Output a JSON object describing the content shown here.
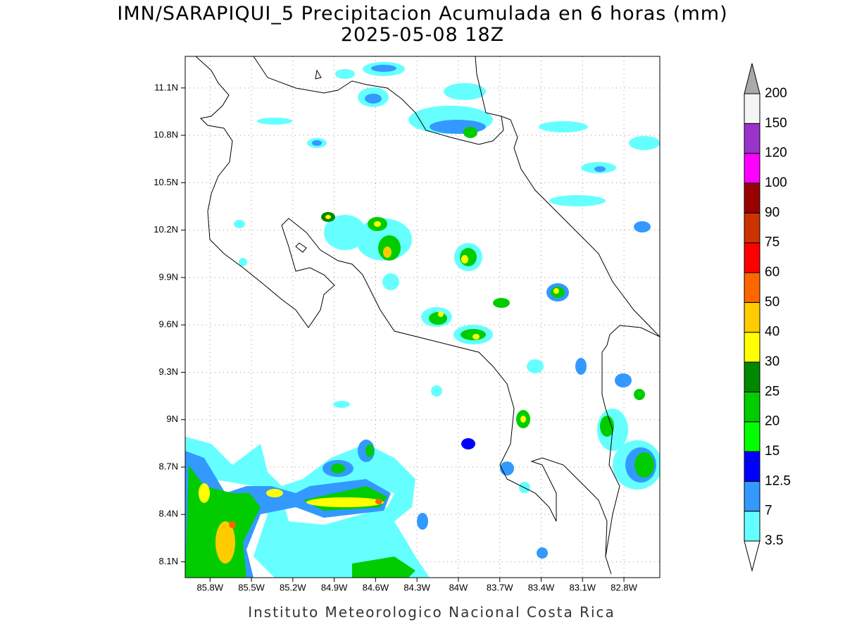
{
  "map": {
    "title": "IMN/SARAPIQUI_5 Precipitacion Acumulada en 6 horas (mm)",
    "subtitle": "2025-05-08 18Z",
    "xlim": [
      -85.98,
      -82.54
    ],
    "ylim": [
      8.0,
      11.3
    ],
    "xticks": [
      {
        "value": -85.8,
        "label": "85.8W"
      },
      {
        "value": -85.5,
        "label": "85.5W"
      },
      {
        "value": -85.2,
        "label": "85.2W"
      },
      {
        "value": -84.9,
        "label": "84.9W"
      },
      {
        "value": -84.6,
        "label": "84.6W"
      },
      {
        "value": -84.3,
        "label": "84.3W"
      },
      {
        "value": -84.0,
        "label": "84W"
      },
      {
        "value": -83.7,
        "label": "83.7W"
      },
      {
        "value": -83.4,
        "label": "83.4W"
      },
      {
        "value": -83.1,
        "label": "83.1W"
      },
      {
        "value": -82.8,
        "label": "82.8W"
      }
    ],
    "yticks": [
      {
        "value": 8.1,
        "label": "8.1N"
      },
      {
        "value": 8.4,
        "label": "8.4N"
      },
      {
        "value": 8.7,
        "label": "8.7N"
      },
      {
        "value": 9.0,
        "label": "9N"
      },
      {
        "value": 9.3,
        "label": "9.3N"
      },
      {
        "value": 9.6,
        "label": "9.6N"
      },
      {
        "value": 9.9,
        "label": "9.9N"
      },
      {
        "value": 10.2,
        "label": "10.2N"
      },
      {
        "value": 10.5,
        "label": "10.5N"
      },
      {
        "value": 10.8,
        "label": "10.8N"
      },
      {
        "value": 11.1,
        "label": "11.1N"
      }
    ],
    "grid": true,
    "colorbar": {
      "levels": [
        3.5,
        7,
        12.5,
        15,
        20,
        25,
        30,
        40,
        50,
        60,
        75,
        90,
        100,
        120,
        150,
        200
      ],
      "colors": [
        "#66ffff",
        "#3399ff",
        "#0000ff",
        "#00ff00",
        "#00cc00",
        "#008800",
        "#ffff00",
        "#ffcc00",
        "#ff6600",
        "#ff0000",
        "#cc3300",
        "#990000",
        "#ff00ff",
        "#9933cc",
        "#f5f5f5"
      ],
      "under_color": "#ffffff",
      "over_color": "#aaaaaa"
    },
    "footer": "Instituto Meteorologico Nacional Costa Rica"
  }
}
